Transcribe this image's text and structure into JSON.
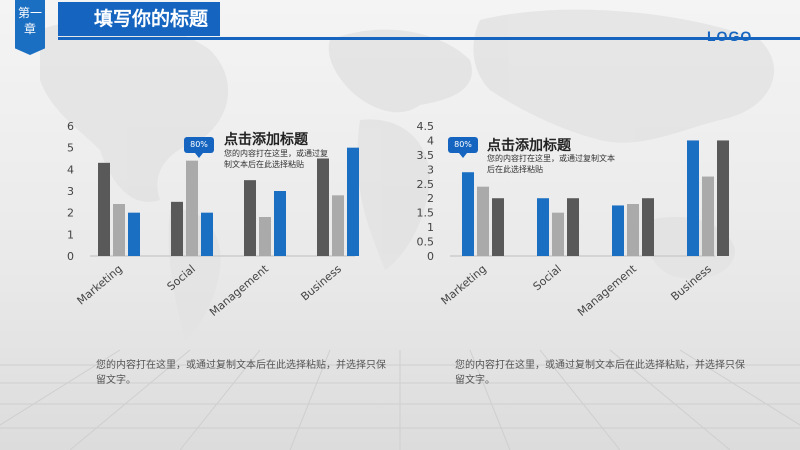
{
  "header": {
    "chapter_label": "第一章",
    "title": "填写你的标题",
    "logo": "LOGO"
  },
  "colors": {
    "accent": "#1565c0",
    "dark_bar": "#595959",
    "light_bar": "#aaaaaa",
    "blue_bar": "#1b6fc2"
  },
  "left_panel": {
    "badge": "80%",
    "callout_title": "点击添加标题",
    "callout_body": "您的内容打在这里，或通过复制文本后在此选择粘贴",
    "description": "您的内容打在这里，或通过复制文本后在此选择粘贴，并选择只保留文字。"
  },
  "right_panel": {
    "badge": "80%",
    "callout_title": "点击添加标题",
    "callout_body": "您的内容打在这里，或通过复制文本后在此选择粘贴",
    "description": "您的内容打在这里，或通过复制文本后在此选择粘贴，并选择只保留文字。"
  },
  "chart_data": [
    {
      "type": "bar",
      "categories": [
        "Marketing",
        "Social",
        "Management",
        "Business"
      ],
      "series": [
        {
          "values": [
            4.3,
            2.5,
            3.5,
            4.5
          ]
        },
        {
          "values": [
            2.4,
            4.4,
            1.8,
            2.8
          ]
        },
        {
          "values": [
            2.0,
            2.0,
            3.0,
            5.0
          ]
        }
      ],
      "ylim": [
        0,
        6
      ],
      "yticks": [
        "0",
        "1",
        "2",
        "3",
        "4",
        "5",
        "6"
      ],
      "colors": [
        "#595959",
        "#aaaaaa",
        "#1b6fc2"
      ]
    },
    {
      "type": "bar",
      "categories": [
        "Marketing",
        "Social",
        "Management",
        "Business"
      ],
      "series": [
        {
          "values": [
            2.9,
            2.0,
            1.75,
            4.0
          ]
        },
        {
          "values": [
            2.4,
            1.5,
            1.8,
            2.75
          ]
        },
        {
          "values": [
            2.0,
            2.0,
            2.0,
            4.0
          ]
        }
      ],
      "ylim": [
        0,
        4.5
      ],
      "yticks": [
        "0",
        "0.5",
        "1",
        "1.5",
        "2",
        "2.5",
        "3",
        "3.5",
        "4",
        "4.5"
      ],
      "colors": [
        "#1b6fc2",
        "#aaaaaa",
        "#595959"
      ]
    }
  ]
}
